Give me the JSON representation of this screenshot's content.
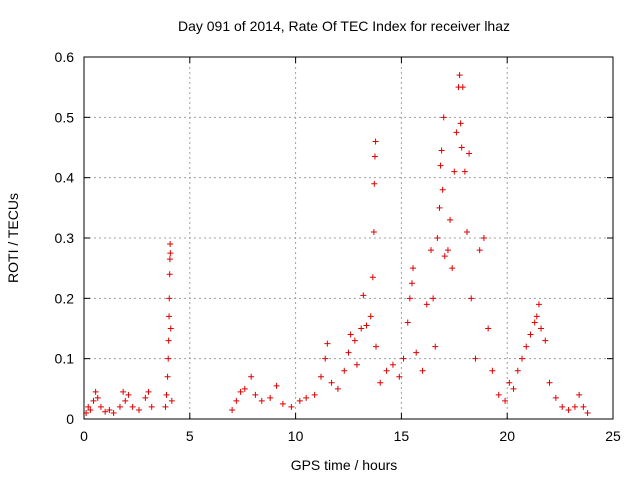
{
  "chart_data": {
    "type": "scatter",
    "title": "Day 091 of 2014, Rate Of TEC Index for receiver lhaz",
    "xlabel": "GPS time / hours",
    "ylabel": "ROTI / TECUs",
    "xlim": [
      0,
      25
    ],
    "ylim": [
      0,
      0.6
    ],
    "xticks": [
      0,
      5,
      10,
      15,
      20,
      25
    ],
    "yticks": [
      0,
      0.1,
      0.2,
      0.3,
      0.4,
      0.5,
      0.6
    ],
    "xtick_labels": [
      "0",
      "5",
      "10",
      "15",
      "20",
      "25"
    ],
    "ytick_labels": [
      "0",
      "0.1",
      "0.2",
      "0.3",
      "0.4",
      "0.5",
      "0.6"
    ],
    "grid": true,
    "marker": "+",
    "color": "#e00000",
    "series": [
      {
        "name": "ROTI",
        "points": [
          [
            0.1,
            0.01
          ],
          [
            0.2,
            0.02
          ],
          [
            0.3,
            0.015
          ],
          [
            0.45,
            0.03
          ],
          [
            0.55,
            0.045
          ],
          [
            0.65,
            0.035
          ],
          [
            0.8,
            0.02
          ],
          [
            1.0,
            0.012
          ],
          [
            1.2,
            0.015
          ],
          [
            1.4,
            0.01
          ],
          [
            1.7,
            0.02
          ],
          [
            1.85,
            0.045
          ],
          [
            1.95,
            0.03
          ],
          [
            2.1,
            0.04
          ],
          [
            2.3,
            0.02
          ],
          [
            2.6,
            0.015
          ],
          [
            2.9,
            0.035
          ],
          [
            3.05,
            0.045
          ],
          [
            3.2,
            0.02
          ],
          [
            3.85,
            0.02
          ],
          [
            3.9,
            0.04
          ],
          [
            3.95,
            0.07
          ],
          [
            3.98,
            0.1
          ],
          [
            4.0,
            0.13
          ],
          [
            4.02,
            0.17
          ],
          [
            4.03,
            0.2
          ],
          [
            4.05,
            0.24
          ],
          [
            4.06,
            0.265
          ],
          [
            4.07,
            0.29
          ],
          [
            4.08,
            0.275
          ],
          [
            4.1,
            0.15
          ],
          [
            4.15,
            0.03
          ],
          [
            7.0,
            0.015
          ],
          [
            7.2,
            0.03
          ],
          [
            7.4,
            0.045
          ],
          [
            7.6,
            0.05
          ],
          [
            7.9,
            0.07
          ],
          [
            8.1,
            0.04
          ],
          [
            8.4,
            0.03
          ],
          [
            8.8,
            0.035
          ],
          [
            9.1,
            0.055
          ],
          [
            9.4,
            0.025
          ],
          [
            9.8,
            0.02
          ],
          [
            10.2,
            0.03
          ],
          [
            10.5,
            0.035
          ],
          [
            10.9,
            0.04
          ],
          [
            11.2,
            0.07
          ],
          [
            11.4,
            0.1
          ],
          [
            11.5,
            0.125
          ],
          [
            11.7,
            0.06
          ],
          [
            12.0,
            0.05
          ],
          [
            12.3,
            0.08
          ],
          [
            12.5,
            0.11
          ],
          [
            12.6,
            0.14
          ],
          [
            12.8,
            0.13
          ],
          [
            12.9,
            0.09
          ],
          [
            13.1,
            0.15
          ],
          [
            13.2,
            0.205
          ],
          [
            13.35,
            0.155
          ],
          [
            13.55,
            0.17
          ],
          [
            13.65,
            0.235
          ],
          [
            13.7,
            0.31
          ],
          [
            13.72,
            0.39
          ],
          [
            13.75,
            0.435
          ],
          [
            13.78,
            0.46
          ],
          [
            13.8,
            0.12
          ],
          [
            14.0,
            0.06
          ],
          [
            14.3,
            0.08
          ],
          [
            14.6,
            0.09
          ],
          [
            14.9,
            0.07
          ],
          [
            15.1,
            0.1
          ],
          [
            15.3,
            0.16
          ],
          [
            15.4,
            0.2
          ],
          [
            15.5,
            0.225
          ],
          [
            15.55,
            0.25
          ],
          [
            15.7,
            0.11
          ],
          [
            16.0,
            0.08
          ],
          [
            16.2,
            0.19
          ],
          [
            16.4,
            0.28
          ],
          [
            16.5,
            0.2
          ],
          [
            16.6,
            0.12
          ],
          [
            16.7,
            0.3
          ],
          [
            16.8,
            0.35
          ],
          [
            16.85,
            0.42
          ],
          [
            16.9,
            0.445
          ],
          [
            16.95,
            0.38
          ],
          [
            17.0,
            0.5
          ],
          [
            17.05,
            0.27
          ],
          [
            17.2,
            0.28
          ],
          [
            17.3,
            0.33
          ],
          [
            17.4,
            0.25
          ],
          [
            17.5,
            0.41
          ],
          [
            17.6,
            0.475
          ],
          [
            17.7,
            0.55
          ],
          [
            17.75,
            0.57
          ],
          [
            17.8,
            0.49
          ],
          [
            17.85,
            0.45
          ],
          [
            17.9,
            0.55
          ],
          [
            18.0,
            0.41
          ],
          [
            18.1,
            0.31
          ],
          [
            18.2,
            0.44
          ],
          [
            18.3,
            0.2
          ],
          [
            18.5,
            0.1
          ],
          [
            18.7,
            0.28
          ],
          [
            18.9,
            0.3
          ],
          [
            19.1,
            0.15
          ],
          [
            19.3,
            0.08
          ],
          [
            19.6,
            0.04
          ],
          [
            19.9,
            0.03
          ],
          [
            20.1,
            0.06
          ],
          [
            20.3,
            0.05
          ],
          [
            20.5,
            0.08
          ],
          [
            20.7,
            0.1
          ],
          [
            20.9,
            0.12
          ],
          [
            21.1,
            0.14
          ],
          [
            21.3,
            0.16
          ],
          [
            21.4,
            0.17
          ],
          [
            21.5,
            0.19
          ],
          [
            21.6,
            0.15
          ],
          [
            21.8,
            0.13
          ],
          [
            22.0,
            0.06
          ],
          [
            22.3,
            0.035
          ],
          [
            22.6,
            0.02
          ],
          [
            22.9,
            0.015
          ],
          [
            23.2,
            0.02
          ],
          [
            23.4,
            0.04
          ],
          [
            23.6,
            0.02
          ],
          [
            23.8,
            0.01
          ]
        ]
      }
    ]
  }
}
